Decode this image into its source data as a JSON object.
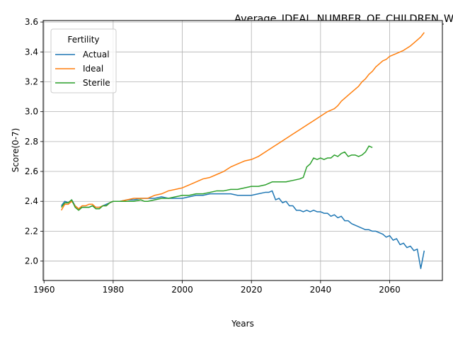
{
  "chart_data": {
    "type": "line",
    "title": "Average_IDEAL_NUMBER_OF_CHILDREN_White_Female_Below_Average_I",
    "xlabel": "Years",
    "ylabel": "Score(0-7)",
    "xlim": [
      1959.75,
      2075.25
    ],
    "ylim": [
      1.87,
      3.61
    ],
    "x_ticks": [
      1960,
      1980,
      2000,
      2020,
      2040,
      2060
    ],
    "y_ticks": [
      2.0,
      2.2,
      2.4,
      2.6,
      2.8,
      3.0,
      3.2,
      3.4,
      3.6
    ],
    "x_tick_labels": [
      "1960",
      "1980",
      "2000",
      "2020",
      "2040",
      "2060"
    ],
    "y_tick_labels": [
      "2.0",
      "2.2",
      "2.4",
      "2.6",
      "2.8",
      "3.0",
      "3.2",
      "3.4",
      "3.6"
    ],
    "grid": true,
    "legend": {
      "title": "Fertility",
      "placement": "top-left"
    },
    "series": [
      {
        "name": "Actual",
        "color": "#1f77b4",
        "points": [
          [
            1965,
            2.37
          ],
          [
            1966,
            2.4
          ],
          [
            1967,
            2.39
          ],
          [
            1968,
            2.41
          ],
          [
            1969,
            2.37
          ],
          [
            1970,
            2.35
          ],
          [
            1971,
            2.36
          ],
          [
            1972,
            2.36
          ],
          [
            1973,
            2.36
          ],
          [
            1974,
            2.37
          ],
          [
            1975,
            2.36
          ],
          [
            1976,
            2.36
          ],
          [
            1977,
            2.37
          ],
          [
            1978,
            2.38
          ],
          [
            1979,
            2.39
          ],
          [
            1980,
            2.4
          ],
          [
            1982,
            2.4
          ],
          [
            1984,
            2.41
          ],
          [
            1986,
            2.41
          ],
          [
            1988,
            2.42
          ],
          [
            1990,
            2.42
          ],
          [
            1992,
            2.42
          ],
          [
            1994,
            2.43
          ],
          [
            1996,
            2.42
          ],
          [
            1998,
            2.42
          ],
          [
            2000,
            2.42
          ],
          [
            2002,
            2.43
          ],
          [
            2004,
            2.44
          ],
          [
            2006,
            2.44
          ],
          [
            2008,
            2.45
          ],
          [
            2010,
            2.45
          ],
          [
            2012,
            2.45
          ],
          [
            2014,
            2.45
          ],
          [
            2016,
            2.44
          ],
          [
            2018,
            2.44
          ],
          [
            2020,
            2.44
          ],
          [
            2022,
            2.45
          ],
          [
            2024,
            2.46
          ],
          [
            2025,
            2.46
          ],
          [
            2026,
            2.47
          ],
          [
            2027,
            2.41
          ],
          [
            2028,
            2.42
          ],
          [
            2029,
            2.39
          ],
          [
            2030,
            2.4
          ],
          [
            2031,
            2.37
          ],
          [
            2032,
            2.37
          ],
          [
            2033,
            2.34
          ],
          [
            2034,
            2.34
          ],
          [
            2035,
            2.33
          ],
          [
            2036,
            2.34
          ],
          [
            2037,
            2.33
          ],
          [
            2038,
            2.34
          ],
          [
            2039,
            2.33
          ],
          [
            2040,
            2.33
          ],
          [
            2041,
            2.32
          ],
          [
            2042,
            2.32
          ],
          [
            2043,
            2.3
          ],
          [
            2044,
            2.31
          ],
          [
            2045,
            2.29
          ],
          [
            2046,
            2.3
          ],
          [
            2047,
            2.27
          ],
          [
            2048,
            2.27
          ],
          [
            2049,
            2.25
          ],
          [
            2050,
            2.24
          ],
          [
            2051,
            2.23
          ],
          [
            2052,
            2.22
          ],
          [
            2053,
            2.21
          ],
          [
            2054,
            2.21
          ],
          [
            2055,
            2.2
          ],
          [
            2056,
            2.2
          ],
          [
            2057,
            2.19
          ],
          [
            2058,
            2.18
          ],
          [
            2059,
            2.16
          ],
          [
            2060,
            2.17
          ],
          [
            2061,
            2.14
          ],
          [
            2062,
            2.15
          ],
          [
            2063,
            2.11
          ],
          [
            2064,
            2.12
          ],
          [
            2065,
            2.09
          ],
          [
            2066,
            2.1
          ],
          [
            2067,
            2.07
          ],
          [
            2068,
            2.08
          ],
          [
            2069,
            1.95
          ],
          [
            2070,
            2.07
          ]
        ]
      },
      {
        "name": "Ideal",
        "color": "#ff7f0e",
        "points": [
          [
            1965,
            2.34
          ],
          [
            1966,
            2.38
          ],
          [
            1967,
            2.38
          ],
          [
            1968,
            2.4
          ],
          [
            1969,
            2.37
          ],
          [
            1970,
            2.35
          ],
          [
            1971,
            2.37
          ],
          [
            1972,
            2.37
          ],
          [
            1973,
            2.38
          ],
          [
            1974,
            2.38
          ],
          [
            1975,
            2.36
          ],
          [
            1976,
            2.36
          ],
          [
            1977,
            2.37
          ],
          [
            1978,
            2.37
          ],
          [
            1979,
            2.39
          ],
          [
            1980,
            2.4
          ],
          [
            1982,
            2.4
          ],
          [
            1984,
            2.41
          ],
          [
            1986,
            2.42
          ],
          [
            1988,
            2.42
          ],
          [
            1990,
            2.42
          ],
          [
            1992,
            2.44
          ],
          [
            1994,
            2.45
          ],
          [
            1996,
            2.47
          ],
          [
            1998,
            2.48
          ],
          [
            2000,
            2.49
          ],
          [
            2002,
            2.51
          ],
          [
            2004,
            2.53
          ],
          [
            2006,
            2.55
          ],
          [
            2008,
            2.56
          ],
          [
            2010,
            2.58
          ],
          [
            2012,
            2.6
          ],
          [
            2014,
            2.63
          ],
          [
            2016,
            2.65
          ],
          [
            2018,
            2.67
          ],
          [
            2020,
            2.68
          ],
          [
            2022,
            2.7
          ],
          [
            2024,
            2.73
          ],
          [
            2026,
            2.76
          ],
          [
            2028,
            2.79
          ],
          [
            2030,
            2.82
          ],
          [
            2032,
            2.85
          ],
          [
            2034,
            2.88
          ],
          [
            2036,
            2.91
          ],
          [
            2038,
            2.94
          ],
          [
            2040,
            2.97
          ],
          [
            2042,
            3.0
          ],
          [
            2044,
            3.02
          ],
          [
            2045,
            3.04
          ],
          [
            2046,
            3.07
          ],
          [
            2047,
            3.09
          ],
          [
            2048,
            3.11
          ],
          [
            2049,
            3.13
          ],
          [
            2050,
            3.15
          ],
          [
            2051,
            3.17
          ],
          [
            2052,
            3.2
          ],
          [
            2053,
            3.22
          ],
          [
            2054,
            3.25
          ],
          [
            2055,
            3.27
          ],
          [
            2056,
            3.3
          ],
          [
            2057,
            3.32
          ],
          [
            2058,
            3.34
          ],
          [
            2059,
            3.35
          ],
          [
            2060,
            3.37
          ],
          [
            2062,
            3.39
          ],
          [
            2064,
            3.41
          ],
          [
            2066,
            3.44
          ],
          [
            2067,
            3.46
          ],
          [
            2068,
            3.48
          ],
          [
            2069,
            3.5
          ],
          [
            2070,
            3.53
          ]
        ]
      },
      {
        "name": "Sterile",
        "color": "#2ca02c",
        "points": [
          [
            1965,
            2.36
          ],
          [
            1966,
            2.39
          ],
          [
            1967,
            2.39
          ],
          [
            1968,
            2.41
          ],
          [
            1969,
            2.36
          ],
          [
            1970,
            2.34
          ],
          [
            1971,
            2.36
          ],
          [
            1972,
            2.36
          ],
          [
            1973,
            2.36
          ],
          [
            1974,
            2.37
          ],
          [
            1975,
            2.35
          ],
          [
            1976,
            2.35
          ],
          [
            1977,
            2.37
          ],
          [
            1978,
            2.37
          ],
          [
            1979,
            2.39
          ],
          [
            1980,
            2.4
          ],
          [
            1982,
            2.4
          ],
          [
            1984,
            2.4
          ],
          [
            1986,
            2.4
          ],
          [
            1988,
            2.41
          ],
          [
            1989,
            2.4
          ],
          [
            1990,
            2.4
          ],
          [
            1992,
            2.41
          ],
          [
            1994,
            2.42
          ],
          [
            1996,
            2.42
          ],
          [
            1998,
            2.43
          ],
          [
            2000,
            2.44
          ],
          [
            2002,
            2.44
          ],
          [
            2004,
            2.45
          ],
          [
            2006,
            2.45
          ],
          [
            2008,
            2.46
          ],
          [
            2010,
            2.47
          ],
          [
            2012,
            2.47
          ],
          [
            2014,
            2.48
          ],
          [
            2016,
            2.48
          ],
          [
            2018,
            2.49
          ],
          [
            2020,
            2.5
          ],
          [
            2022,
            2.5
          ],
          [
            2024,
            2.51
          ],
          [
            2025,
            2.52
          ],
          [
            2026,
            2.53
          ],
          [
            2028,
            2.53
          ],
          [
            2030,
            2.53
          ],
          [
            2032,
            2.54
          ],
          [
            2034,
            2.55
          ],
          [
            2035,
            2.56
          ],
          [
            2036,
            2.63
          ],
          [
            2037,
            2.65
          ],
          [
            2038,
            2.69
          ],
          [
            2039,
            2.68
          ],
          [
            2040,
            2.69
          ],
          [
            2041,
            2.68
          ],
          [
            2042,
            2.69
          ],
          [
            2043,
            2.69
          ],
          [
            2044,
            2.71
          ],
          [
            2045,
            2.7
          ],
          [
            2046,
            2.72
          ],
          [
            2047,
            2.73
          ],
          [
            2048,
            2.7
          ],
          [
            2049,
            2.71
          ],
          [
            2050,
            2.71
          ],
          [
            2051,
            2.7
          ],
          [
            2052,
            2.71
          ],
          [
            2053,
            2.73
          ],
          [
            2054,
            2.77
          ],
          [
            2055,
            2.76
          ]
        ]
      }
    ]
  }
}
